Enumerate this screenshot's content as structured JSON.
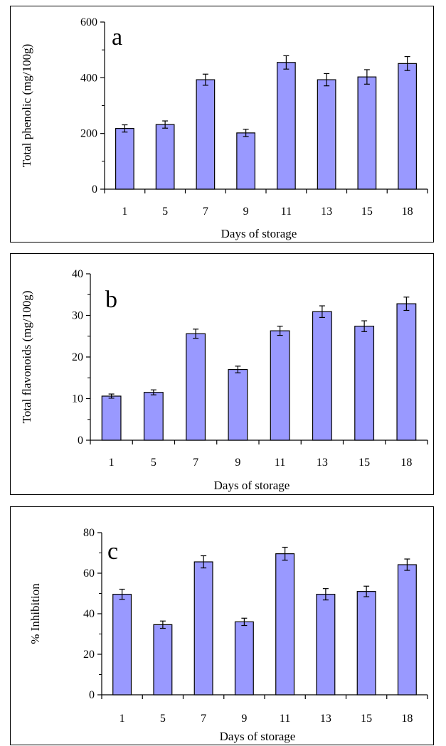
{
  "chart_data": [
    {
      "type": "bar",
      "panel_letter": "a",
      "categories": [
        "1",
        "5",
        "7",
        "9",
        "11",
        "13",
        "15",
        "18"
      ],
      "values": [
        218,
        232,
        393,
        202,
        455,
        393,
        403,
        451
      ],
      "errors": [
        13,
        13,
        20,
        13,
        24,
        22,
        26,
        25
      ],
      "ylabel": "Total phenolic (mg/100g)",
      "xlabel": "Days of storage",
      "ylim": [
        0,
        600
      ],
      "yticks": [
        "0",
        "200",
        "400",
        "600"
      ],
      "bar_color": "#9999ff"
    },
    {
      "type": "bar",
      "panel_letter": "b",
      "categories": [
        "1",
        "5",
        "7",
        "9",
        "11",
        "13",
        "15",
        "18"
      ],
      "values": [
        10.6,
        11.5,
        25.6,
        17.0,
        26.3,
        30.9,
        27.4,
        32.8
      ],
      "errors": [
        0.5,
        0.6,
        1.1,
        0.8,
        1.1,
        1.4,
        1.3,
        1.6
      ],
      "ylabel": "Total flavonoids (mg/100g)",
      "xlabel": "Days of storage",
      "ylim": [
        0,
        40
      ],
      "yticks": [
        "0",
        "10",
        "20",
        "30",
        "40"
      ],
      "bar_color": "#9999ff"
    },
    {
      "type": "bar",
      "panel_letter": "c",
      "categories": [
        "1",
        "5",
        "7",
        "9",
        "11",
        "13",
        "15",
        "18"
      ],
      "values": [
        49.6,
        34.6,
        65.6,
        36.0,
        69.6,
        49.6,
        51.0,
        64.2
      ],
      "errors": [
        2.5,
        1.8,
        3.0,
        1.8,
        3.2,
        2.8,
        2.6,
        2.8
      ],
      "ylabel": "% Inhibition",
      "xlabel": "Days of storage",
      "ylim": [
        0,
        80
      ],
      "yticks": [
        "0",
        "20",
        "40",
        "60",
        "80"
      ],
      "bar_color": "#9999ff"
    }
  ]
}
